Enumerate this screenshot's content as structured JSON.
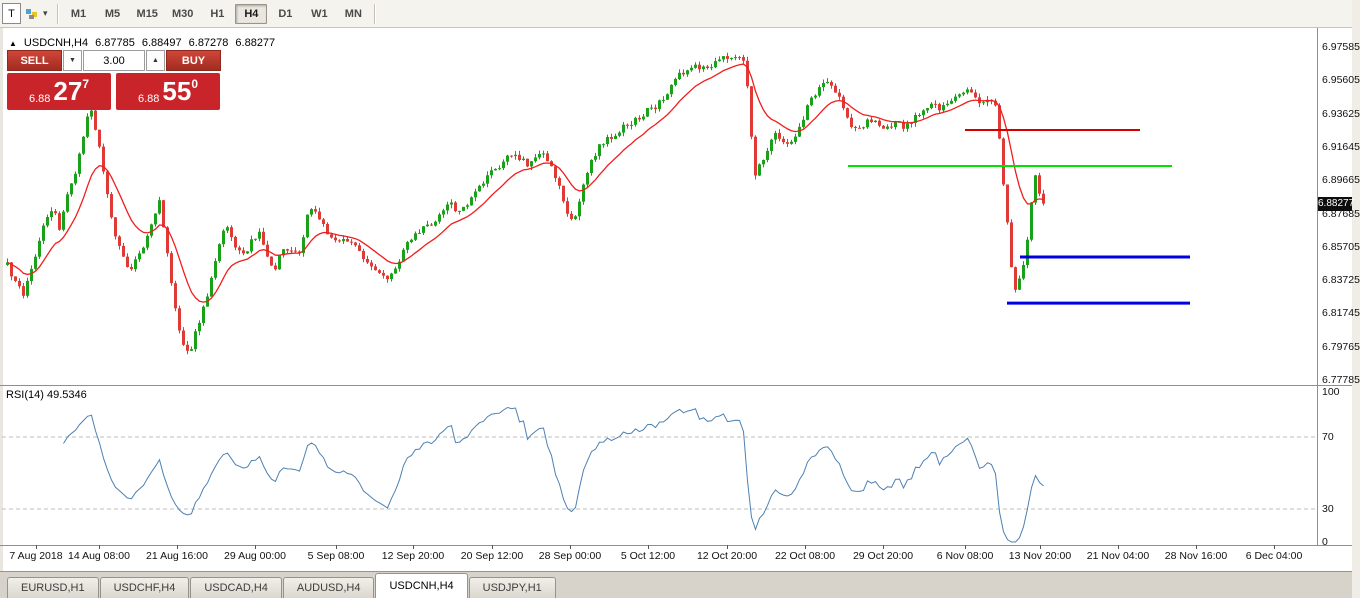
{
  "toolbar": {
    "t_button_label": "T",
    "timeframes": [
      {
        "label": "M1",
        "active": false
      },
      {
        "label": "M5",
        "active": false
      },
      {
        "label": "M15",
        "active": false
      },
      {
        "label": "M30",
        "active": false
      },
      {
        "label": "H1",
        "active": false
      },
      {
        "label": "H4",
        "active": true
      },
      {
        "label": "D1",
        "active": false
      },
      {
        "label": "W1",
        "active": false
      },
      {
        "label": "MN",
        "active": false
      }
    ]
  },
  "icons": {
    "dropdown_caret": "▾",
    "collapse_triangle": "▲",
    "volume_down_caret": "▼",
    "volume_up_caret": "▲"
  },
  "chart": {
    "header": {
      "symbol": "USDCNH,H4",
      "open": "6.87785",
      "high": "6.88497",
      "low": "6.87278",
      "close": "6.88277"
    },
    "trade_panel": {
      "sell_label": "SELL",
      "buy_label": "BUY",
      "volume": "3.00",
      "sell_price_prefix": "6.88",
      "sell_price_main": "27",
      "sell_price_sup": "7",
      "buy_price_prefix": "6.88",
      "buy_price_main": "55",
      "buy_price_sup": "0"
    }
  },
  "chart_data": {
    "type": "candlestick",
    "symbol": "USDCNH",
    "timeframe": "H4",
    "ohlc": {
      "open": 6.87785,
      "high": 6.88497,
      "low": 6.87278,
      "close": 6.88277
    },
    "current_price": 6.88277,
    "y_ticks": [
      6.97585,
      6.95605,
      6.93625,
      6.91645,
      6.89665,
      6.87685,
      6.85705,
      6.83725,
      6.81745,
      6.79765,
      6.77785
    ],
    "x_ticks": [
      {
        "label": "7 Aug 2018",
        "x": 36
      },
      {
        "label": "14 Aug 08:00",
        "x": 99
      },
      {
        "label": "21 Aug 16:00",
        "x": 177
      },
      {
        "label": "29 Aug 00:00",
        "x": 255
      },
      {
        "label": "5 Sep 08:00",
        "x": 336
      },
      {
        "label": "12 Sep 20:00",
        "x": 413
      },
      {
        "label": "20 Sep 12:00",
        "x": 492
      },
      {
        "label": "28 Sep 00:00",
        "x": 570
      },
      {
        "label": "5 Oct 12:00",
        "x": 648
      },
      {
        "label": "12 Oct 20:00",
        "x": 727
      },
      {
        "label": "22 Oct 08:00",
        "x": 805
      },
      {
        "label": "29 Oct 20:00",
        "x": 883
      },
      {
        "label": "6 Nov 08:00",
        "x": 965
      },
      {
        "label": "13 Nov 20:00",
        "x": 1040
      },
      {
        "label": "21 Nov 04:00",
        "x": 1118
      },
      {
        "label": "28 Nov 16:00",
        "x": 1196
      },
      {
        "label": "6 Dec 04:00",
        "x": 1274
      }
    ],
    "price_anchors": [
      [
        6,
        6.846
      ],
      [
        14,
        6.836
      ],
      [
        22,
        6.828
      ],
      [
        30,
        6.843
      ],
      [
        38,
        6.86
      ],
      [
        46,
        6.876
      ],
      [
        52,
        6.882
      ],
      [
        58,
        6.868
      ],
      [
        66,
        6.888
      ],
      [
        74,
        6.902
      ],
      [
        82,
        6.922
      ],
      [
        88,
        6.9405
      ],
      [
        94,
        6.928
      ],
      [
        100,
        6.91
      ],
      [
        106,
        6.89
      ],
      [
        112,
        6.868
      ],
      [
        120,
        6.854
      ],
      [
        128,
        6.843
      ],
      [
        136,
        6.85
      ],
      [
        144,
        6.86
      ],
      [
        152,
        6.872
      ],
      [
        158,
        6.884
      ],
      [
        164,
        6.862
      ],
      [
        170,
        6.836
      ],
      [
        176,
        6.812
      ],
      [
        182,
        6.798
      ],
      [
        188,
        6.793
      ],
      [
        196,
        6.81
      ],
      [
        204,
        6.824
      ],
      [
        212,
        6.845
      ],
      [
        220,
        6.864
      ],
      [
        226,
        6.868
      ],
      [
        234,
        6.856
      ],
      [
        242,
        6.852
      ],
      [
        250,
        6.86
      ],
      [
        258,
        6.866
      ],
      [
        266,
        6.85
      ],
      [
        274,
        6.845
      ],
      [
        282,
        6.856
      ],
      [
        290,
        6.855
      ],
      [
        298,
        6.852
      ],
      [
        306,
        6.877
      ],
      [
        312,
        6.882
      ],
      [
        320,
        6.872
      ],
      [
        328,
        6.863
      ],
      [
        336,
        6.858
      ],
      [
        344,
        6.861
      ],
      [
        352,
        6.86
      ],
      [
        360,
        6.852
      ],
      [
        368,
        6.846
      ],
      [
        376,
        6.843
      ],
      [
        384,
        6.839
      ],
      [
        392,
        6.841
      ],
      [
        400,
        6.852
      ],
      [
        408,
        6.862
      ],
      [
        416,
        6.865
      ],
      [
        424,
        6.869
      ],
      [
        432,
        6.872
      ],
      [
        440,
        6.878
      ],
      [
        448,
        6.883
      ],
      [
        456,
        6.879
      ],
      [
        464,
        6.88
      ],
      [
        472,
        6.888
      ],
      [
        480,
        6.894
      ],
      [
        488,
        6.9
      ],
      [
        496,
        6.904
      ],
      [
        504,
        6.909
      ],
      [
        512,
        6.913
      ],
      [
        520,
        6.909
      ],
      [
        528,
        6.905
      ],
      [
        536,
        6.912
      ],
      [
        544,
        6.911
      ],
      [
        552,
        6.902
      ],
      [
        560,
        6.89
      ],
      [
        568,
        6.871
      ],
      [
        574,
        6.874
      ],
      [
        582,
        6.894
      ],
      [
        590,
        6.908
      ],
      [
        598,
        6.917
      ],
      [
        606,
        6.921
      ],
      [
        614,
        6.924
      ],
      [
        622,
        6.928
      ],
      [
        630,
        6.931
      ],
      [
        638,
        6.934
      ],
      [
        646,
        6.938
      ],
      [
        654,
        6.94
      ],
      [
        662,
        6.946
      ],
      [
        670,
        6.952
      ],
      [
        678,
        6.959
      ],
      [
        686,
        6.963
      ],
      [
        692,
        6.966
      ],
      [
        698,
        6.962
      ],
      [
        706,
        6.964
      ],
      [
        714,
        6.967
      ],
      [
        722,
        6.969
      ],
      [
        730,
        6.971
      ],
      [
        738,
        6.97
      ],
      [
        744,
        6.967
      ],
      [
        750,
        6.922
      ],
      [
        754,
        6.901
      ],
      [
        758,
        6.906
      ],
      [
        764,
        6.912
      ],
      [
        770,
        6.92
      ],
      [
        776,
        6.925
      ],
      [
        782,
        6.919
      ],
      [
        788,
        6.917
      ],
      [
        794,
        6.922
      ],
      [
        800,
        6.931
      ],
      [
        806,
        6.94
      ],
      [
        812,
        6.946
      ],
      [
        818,
        6.952
      ],
      [
        824,
        6.958
      ],
      [
        830,
        6.953
      ],
      [
        836,
        6.948
      ],
      [
        842,
        6.94
      ],
      [
        848,
        6.931
      ],
      [
        854,
        6.927
      ],
      [
        860,
        6.929
      ],
      [
        866,
        6.931
      ],
      [
        872,
        6.932
      ],
      [
        878,
        6.929
      ],
      [
        884,
        6.927
      ],
      [
        890,
        6.928
      ],
      [
        896,
        6.931
      ],
      [
        902,
        6.929
      ],
      [
        908,
        6.931
      ],
      [
        914,
        6.934
      ],
      [
        920,
        6.937
      ],
      [
        926,
        6.94
      ],
      [
        932,
        6.942
      ],
      [
        938,
        6.939
      ],
      [
        944,
        6.943
      ],
      [
        950,
        6.945
      ],
      [
        956,
        6.947
      ],
      [
        962,
        6.948
      ],
      [
        968,
        6.95
      ],
      [
        974,
        6.946
      ],
      [
        980,
        6.942
      ],
      [
        986,
        6.944
      ],
      [
        992,
        6.945
      ],
      [
        996,
        6.938
      ],
      [
        1000,
        6.905
      ],
      [
        1004,
        6.885
      ],
      [
        1008,
        6.858
      ],
      [
        1012,
        6.835
      ],
      [
        1016,
        6.828
      ],
      [
        1020,
        6.846
      ],
      [
        1024,
        6.85
      ],
      [
        1028,
        6.872
      ],
      [
        1032,
        6.892
      ],
      [
        1035,
        6.901
      ],
      [
        1038,
        6.888
      ],
      [
        1042,
        6.88277
      ]
    ],
    "horizontal_lines": [
      {
        "price": 6.9265,
        "color": "#d40000",
        "x1": 965,
        "x2": 1140,
        "w": 2
      },
      {
        "price": 6.9051,
        "color": "#00e200",
        "x1": 848,
        "x2": 1172,
        "w": 2
      },
      {
        "price": 6.851,
        "color": "#0000e0",
        "x1": 1020,
        "x2": 1190,
        "w": 3
      },
      {
        "price": 6.8236,
        "color": "#0000e0",
        "x1": 1007,
        "x2": 1190,
        "w": 3
      }
    ],
    "colors": {
      "up": "#19a219",
      "down": "#e03a36",
      "ma": "#f01e1e",
      "rsi": "#4d80b2"
    },
    "rsi": {
      "label": "RSI(14) 49.5346",
      "period": 14,
      "value": 49.5346,
      "levels": [
        100,
        70,
        30,
        0
      ]
    }
  },
  "tabs": [
    {
      "label": "EURUSD,H1",
      "active": false
    },
    {
      "label": "USDCHF,H4",
      "active": false
    },
    {
      "label": "USDCAD,H4",
      "active": false
    },
    {
      "label": "AUDUSD,H4",
      "active": false
    },
    {
      "label": "USDCNH,H4",
      "active": true
    },
    {
      "label": "USDJPY,H1",
      "active": false
    }
  ]
}
